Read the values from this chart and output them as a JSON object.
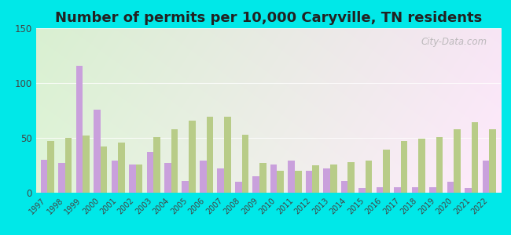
{
  "title": "Number of permits per 10,000 Caryville, TN residents",
  "years": [
    1997,
    1998,
    1999,
    2000,
    2001,
    2002,
    2003,
    2004,
    2005,
    2006,
    2007,
    2008,
    2009,
    2010,
    2011,
    2012,
    2013,
    2014,
    2015,
    2016,
    2017,
    2018,
    2019,
    2020,
    2021,
    2022
  ],
  "caryville": [
    30,
    27,
    116,
    76,
    29,
    26,
    37,
    27,
    11,
    29,
    22,
    10,
    15,
    26,
    29,
    20,
    22,
    11,
    4,
    5,
    5,
    5,
    5,
    10,
    4,
    29
  ],
  "tennessee": [
    47,
    50,
    52,
    42,
    46,
    26,
    51,
    58,
    66,
    69,
    69,
    53,
    27,
    20,
    20,
    25,
    26,
    28,
    29,
    39,
    47,
    49,
    51,
    58,
    64,
    58
  ],
  "caryville_color": "#c9a0dc",
  "tennessee_color": "#b8cc88",
  "bg_color_outer": "#00e8e8",
  "ylim": [
    0,
    150
  ],
  "yticks": [
    0,
    50,
    100,
    150
  ],
  "title_fontsize": 13,
  "watermark": "City-Data.com"
}
